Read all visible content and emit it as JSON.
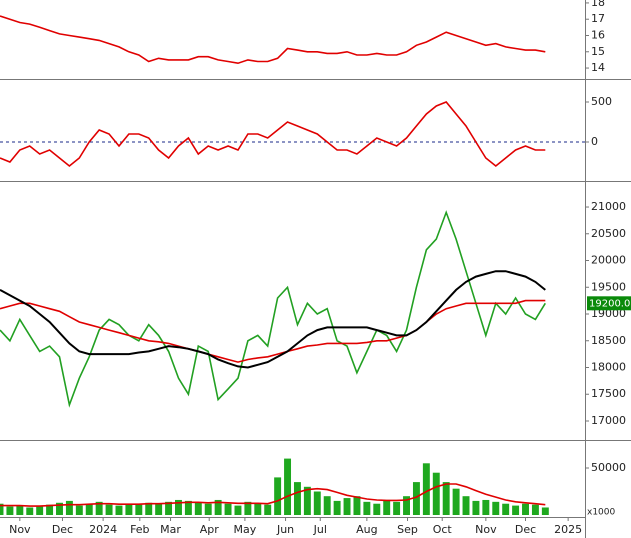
{
  "chart_data": [
    {
      "type": "line",
      "series": [
        {
          "name": "Indicator",
          "color": "#e00000",
          "values": [
            17.2,
            17.0,
            16.8,
            16.7,
            16.5,
            16.3,
            16.1,
            16.0,
            15.9,
            15.8,
            15.7,
            15.5,
            15.3,
            15.0,
            14.8,
            14.4,
            14.6,
            14.5,
            14.5,
            14.5,
            14.7,
            14.7,
            14.5,
            14.4,
            14.3,
            14.5,
            14.4,
            14.4,
            14.6,
            15.2,
            15.1,
            15.0,
            15.0,
            14.9,
            14.9,
            15.0,
            14.8,
            14.8,
            14.9,
            14.8,
            14.8,
            15.0,
            15.4,
            15.6,
            15.9,
            16.2,
            16.0,
            15.8,
            15.6,
            15.4,
            15.5,
            15.3,
            15.2,
            15.1,
            15.1,
            15.0
          ]
        }
      ],
      "ylim": [
        13.45,
        18.18
      ],
      "yticks": [
        14,
        15,
        16,
        17,
        18
      ]
    },
    {
      "type": "line",
      "series": [
        {
          "name": "Oscillator",
          "color": "#e00000",
          "values": [
            -200,
            -250,
            -100,
            -50,
            -150,
            -100,
            -200,
            -300,
            -200,
            0,
            150,
            100,
            -50,
            100,
            100,
            50,
            -100,
            -200,
            -50,
            50,
            -150,
            -50,
            -100,
            -50,
            -100,
            100,
            100,
            50,
            150,
            250,
            200,
            150,
            100,
            0,
            -100,
            -100,
            -150,
            -50,
            50,
            0,
            -50,
            50,
            200,
            350,
            450,
            500,
            350,
            200,
            0,
            -200,
            -300,
            -200,
            -100,
            -50,
            -100,
            -100
          ]
        }
      ],
      "reference_line": 0,
      "ylim": [
        -475,
        750
      ],
      "yticks": [
        0,
        500
      ]
    },
    {
      "type": "line",
      "series": [
        {
          "name": "Price",
          "color": "#22a022",
          "values": [
            18700,
            18500,
            18900,
            18600,
            18300,
            18400,
            18200,
            17300,
            17800,
            18200,
            18700,
            18900,
            18800,
            18600,
            18500,
            18800,
            18600,
            18300,
            17800,
            17500,
            18400,
            18300,
            17400,
            17600,
            17800,
            18500,
            18600,
            18400,
            19300,
            19500,
            18800,
            19200,
            19000,
            19100,
            18500,
            18400,
            17900,
            18300,
            18700,
            18600,
            18300,
            18700,
            19500,
            20200,
            20400,
            20900,
            20400,
            19800,
            19200,
            18600,
            19200,
            19000,
            19300,
            19000,
            18900,
            19200
          ]
        },
        {
          "name": "MA long",
          "color": "#e00000",
          "values": [
            19100,
            19150,
            19200,
            19200,
            19150,
            19100,
            19050,
            18950,
            18850,
            18800,
            18750,
            18700,
            18650,
            18600,
            18550,
            18500,
            18480,
            18450,
            18400,
            18350,
            18300,
            18250,
            18200,
            18150,
            18100,
            18150,
            18180,
            18200,
            18250,
            18300,
            18350,
            18400,
            18420,
            18450,
            18450,
            18450,
            18450,
            18470,
            18500,
            18500,
            18550,
            18600,
            18700,
            18850,
            19000,
            19100,
            19150,
            19200,
            19200,
            19200,
            19200,
            19200,
            19200,
            19250,
            19250,
            19250
          ]
        },
        {
          "name": "MA short",
          "color": "#000000",
          "values": [
            19450,
            19350,
            19250,
            19150,
            19000,
            18850,
            18650,
            18450,
            18300,
            18250,
            18250,
            18250,
            18250,
            18250,
            18280,
            18300,
            18350,
            18400,
            18380,
            18350,
            18300,
            18250,
            18150,
            18080,
            18020,
            18000,
            18050,
            18100,
            18200,
            18300,
            18450,
            18600,
            18700,
            18750,
            18750,
            18750,
            18750,
            18750,
            18700,
            18650,
            18600,
            18600,
            18700,
            18850,
            19050,
            19250,
            19450,
            19600,
            19700,
            19750,
            19800,
            19800,
            19750,
            19700,
            19600,
            19450
          ]
        }
      ],
      "price_label": {
        "value": 19200,
        "label": "19200.00"
      },
      "ylim": [
        16682,
        21449
      ],
      "yticks": [
        17000,
        17500,
        18000,
        18500,
        19000,
        19500,
        20000,
        20500,
        21000
      ]
    },
    {
      "type": "bar",
      "series": [
        {
          "name": "Volume",
          "color": "#1fa81f",
          "values": [
            12000,
            9000,
            10000,
            8000,
            9000,
            11000,
            13000,
            15000,
            10000,
            12000,
            14000,
            11000,
            10000,
            12000,
            11000,
            13000,
            12000,
            14000,
            16000,
            15000,
            13000,
            12000,
            16000,
            12000,
            10000,
            14000,
            12000,
            11000,
            40000,
            60000,
            35000,
            30000,
            25000,
            20000,
            15000,
            18000,
            20000,
            14000,
            12000,
            16000,
            14000,
            20000,
            35000,
            55000,
            45000,
            35000,
            28000,
            20000,
            15000,
            16000,
            14000,
            12000,
            10000,
            12000,
            11000,
            8000
          ]
        },
        {
          "name": "Volume MA",
          "color": "#e00000",
          "type": "line",
          "values": [
            10000,
            10000,
            10000,
            9500,
            9500,
            10000,
            10500,
            11000,
            11000,
            11500,
            12000,
            12000,
            11500,
            11500,
            11500,
            12000,
            12000,
            12500,
            13000,
            13500,
            13500,
            13000,
            13500,
            13000,
            12500,
            12500,
            12500,
            12000,
            15000,
            20000,
            24000,
            27000,
            28000,
            27000,
            24000,
            21000,
            19000,
            17000,
            16000,
            15500,
            15500,
            16000,
            19000,
            25000,
            30000,
            33000,
            33000,
            30000,
            26000,
            22000,
            19000,
            16000,
            14000,
            13000,
            12000,
            11000
          ]
        }
      ],
      "unit_label": "x1000",
      "ylim": [
        0,
        77660
      ],
      "yticks": [
        50000
      ],
      "xlim": [
        0,
        59
      ],
      "xticks": [
        {
          "value": 2,
          "label": "Nov"
        },
        {
          "value": 6.3,
          "label": "Dec"
        },
        {
          "value": 10.4,
          "label": "2024"
        },
        {
          "value": 14.1,
          "label": "Feb"
        },
        {
          "value": 17.2,
          "label": "Mar"
        },
        {
          "value": 21.1,
          "label": "Apr"
        },
        {
          "value": 24.7,
          "label": "May"
        },
        {
          "value": 28.8,
          "label": "Jun"
        },
        {
          "value": 32.3,
          "label": "Jul"
        },
        {
          "value": 37,
          "label": "Aug"
        },
        {
          "value": 41.1,
          "label": "Sep"
        },
        {
          "value": 44.6,
          "label": "Oct"
        },
        {
          "value": 49,
          "label": "Nov"
        },
        {
          "value": 53,
          "label": "Dec"
        },
        {
          "value": 57.3,
          "label": "2025"
        }
      ]
    }
  ]
}
